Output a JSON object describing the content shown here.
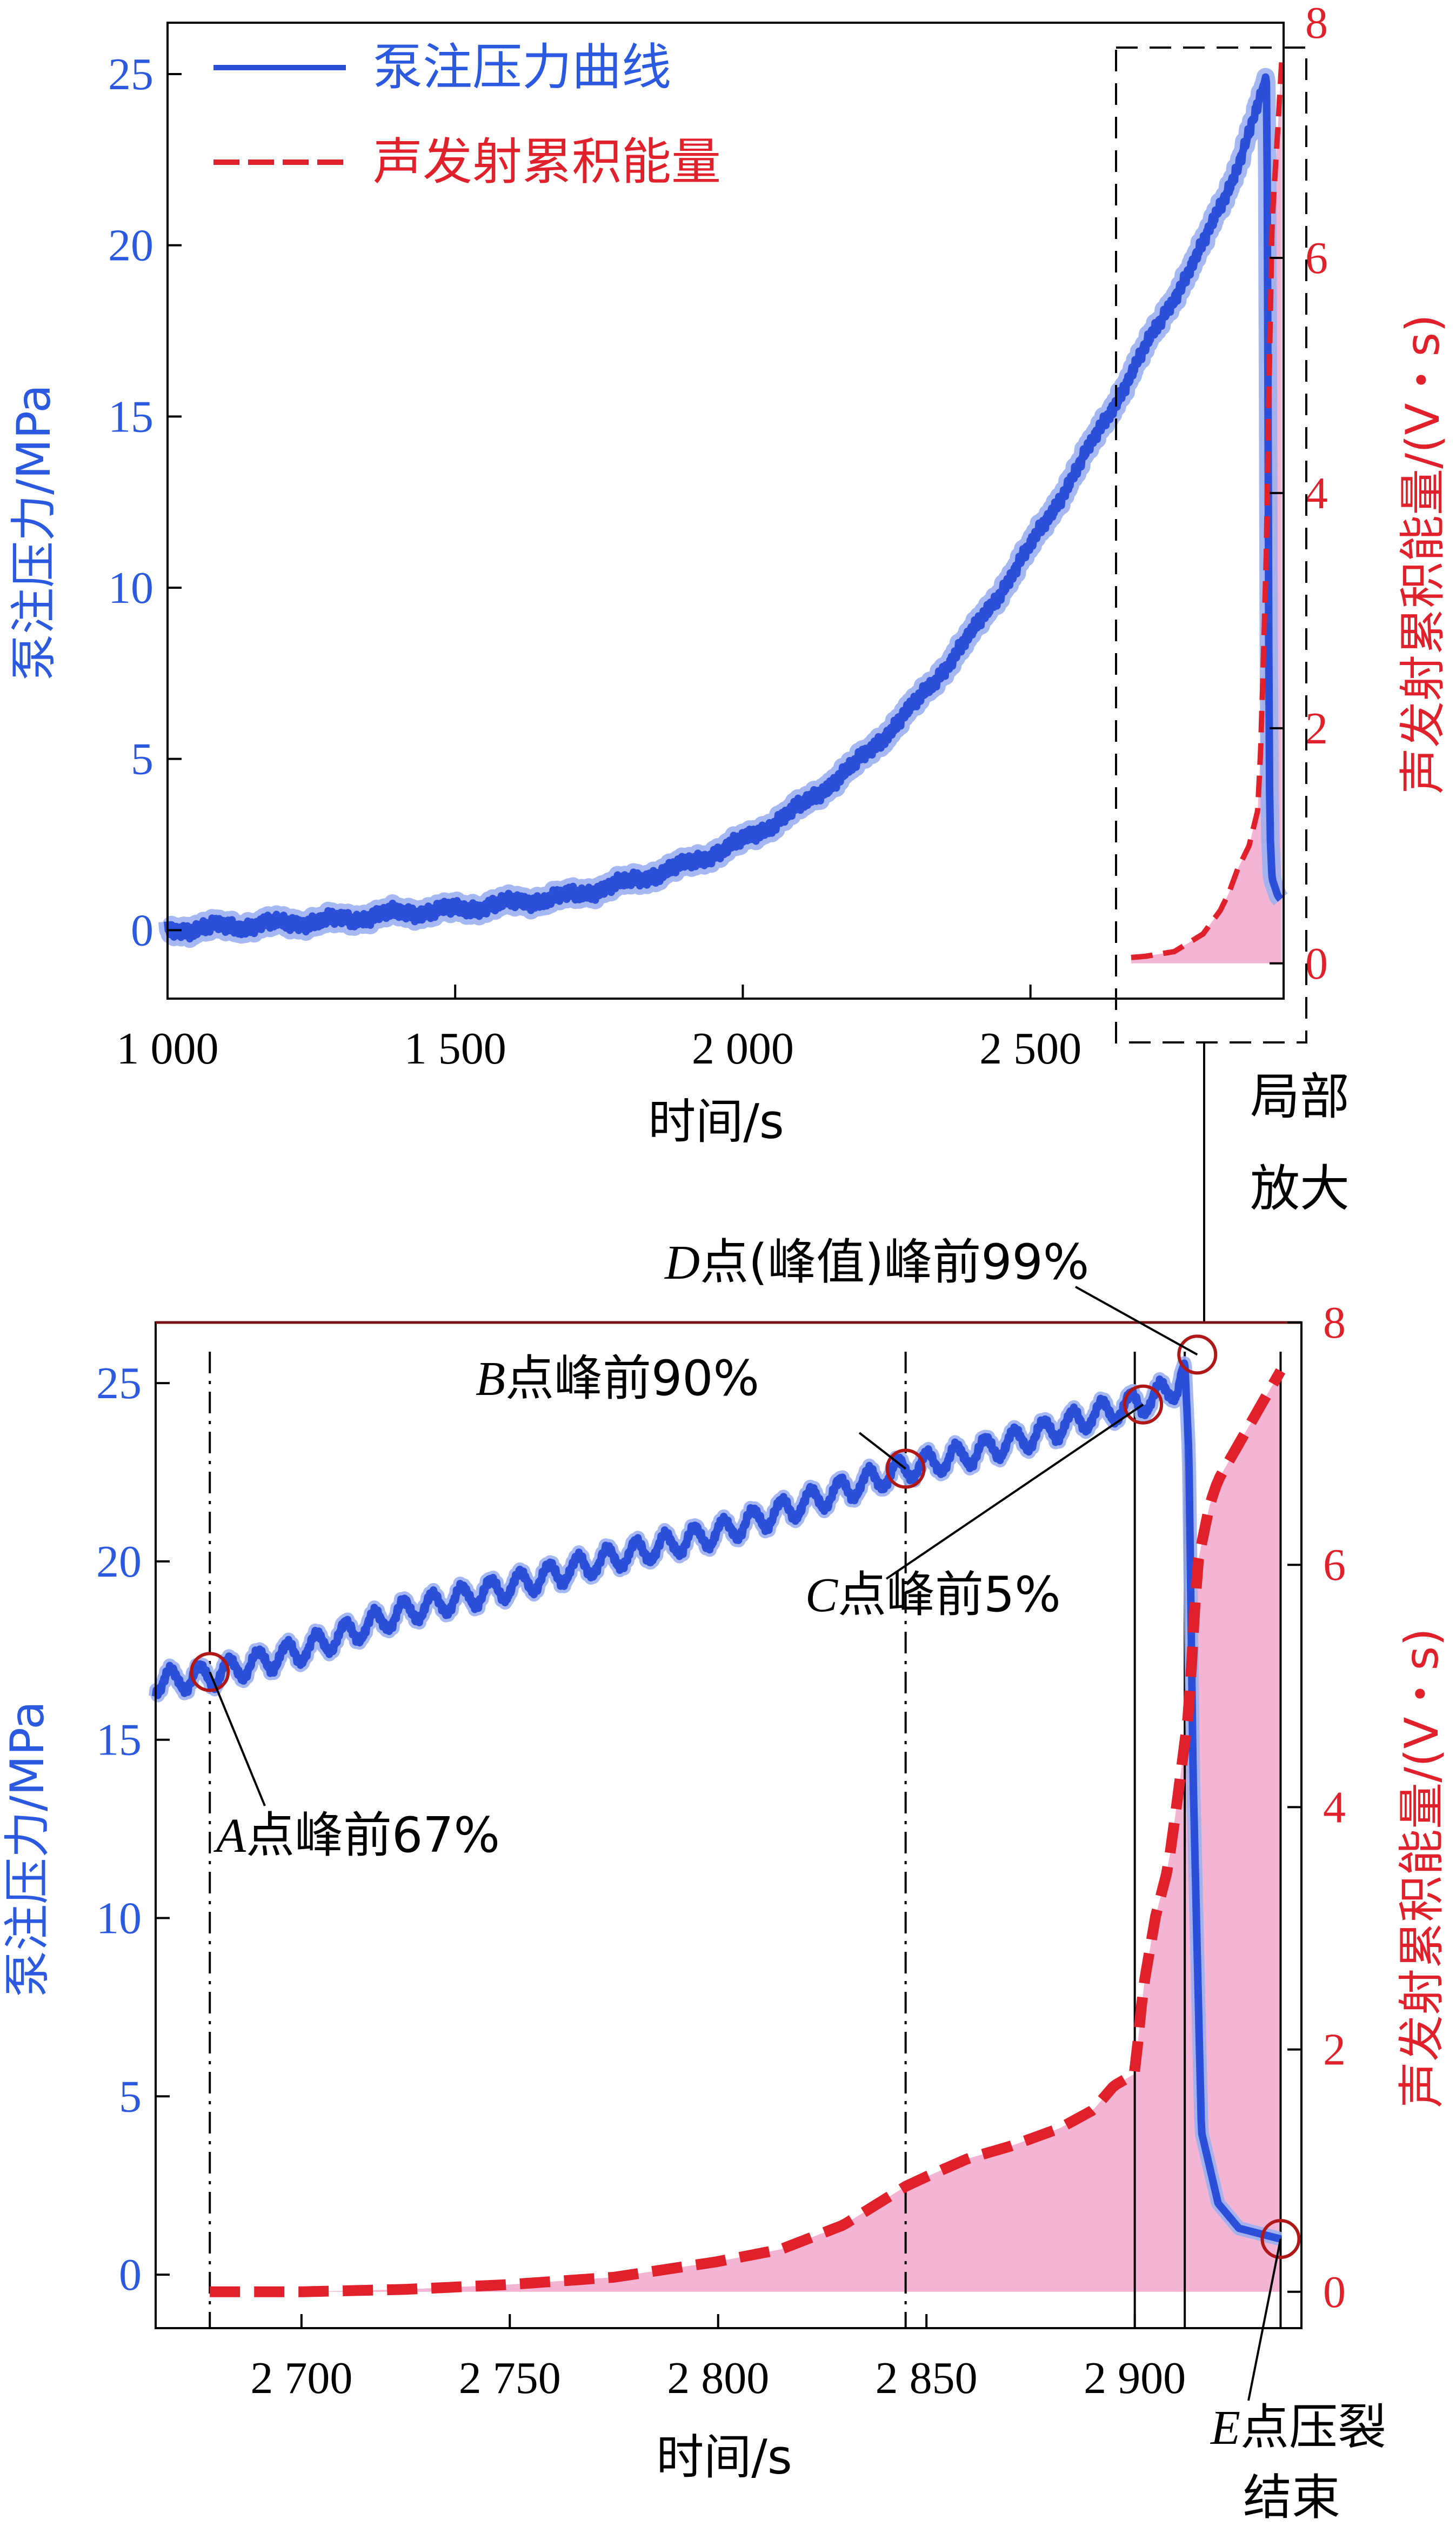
{
  "chart_data": [
    {
      "type": "line",
      "panel": "overview",
      "xlabel": "时间/s",
      "ylabel_left": "泵注压力/MPa",
      "ylabel_right": "声发射累积能量/(V・s)",
      "xlim": [
        1000,
        2940
      ],
      "ylim_left": [
        -2,
        26.5
      ],
      "ylim_right": [
        -0.3,
        8
      ],
      "x_ticks": [
        1000,
        1500,
        2000,
        2500
      ],
      "x_tick_labels": [
        "1 000",
        "1 500",
        "2 000",
        "2 500"
      ],
      "y_left_ticks": [
        0,
        5,
        10,
        15,
        20,
        25
      ],
      "y_left_tick_labels": [
        "0",
        "5",
        "10",
        "15",
        "20",
        "25"
      ],
      "y_right_ticks": [
        0,
        2,
        4,
        6,
        8
      ],
      "y_right_tick_labels": [
        "0",
        "2",
        "4",
        "6",
        "8"
      ],
      "legend": {
        "placement": "top-left",
        "entries": [
          "泵注压力曲线",
          "声发射累积能量"
        ]
      },
      "series": [
        {
          "name": "泵注压力曲线",
          "axis": "left",
          "color": "#2b4fd8",
          "x": [
            1000,
            1100,
            1200,
            1300,
            1400,
            1500,
            1600,
            1700,
            1800,
            1900,
            2000,
            2100,
            2200,
            2300,
            2400,
            2500,
            2600,
            2700,
            2800,
            2850,
            2880,
            2900,
            2910,
            2912,
            2914,
            2916,
            2920,
            2930,
            2935
          ],
          "y": [
            0,
            0.1,
            0.2,
            0.3,
            0.5,
            0.6,
            0.8,
            1.0,
            1.4,
            1.9,
            2.6,
            3.6,
            4.9,
            6.6,
            8.7,
            11.2,
            14.0,
            17.0,
            20.0,
            21.9,
            23.3,
            24.3,
            25.0,
            21.0,
            9.0,
            3.0,
            1.5,
            1.0,
            0.9
          ]
        },
        {
          "name": "声发射累积能量",
          "axis": "right",
          "color": "#e0202a",
          "fill": "#f4b4d4",
          "x": [
            2675,
            2700,
            2750,
            2800,
            2830,
            2845,
            2860,
            2880,
            2895,
            2900,
            2905,
            2910,
            2915,
            2920,
            2930,
            2937
          ],
          "y": [
            0.05,
            0.06,
            0.1,
            0.25,
            0.45,
            0.6,
            0.8,
            1.0,
            1.3,
            1.8,
            2.6,
            3.5,
            5.0,
            6.3,
            7.1,
            7.7
          ]
        }
      ]
    },
    {
      "type": "line",
      "panel": "zoom",
      "xlabel": "时间/s",
      "ylabel_left": "泵注压力/MPa",
      "ylabel_right": "声发射累积能量/(V・s)",
      "xlim": [
        2665,
        2940
      ],
      "ylim_left": [
        -1.5,
        26.7
      ],
      "ylim_right": [
        -0.3,
        8
      ],
      "x_ticks": [
        2700,
        2750,
        2800,
        2850,
        2900
      ],
      "x_tick_labels": [
        "2 700",
        "2 750",
        "2 800",
        "2 850",
        "2 900"
      ],
      "y_left_ticks": [
        0,
        5,
        10,
        15,
        20,
        25
      ],
      "y_left_tick_labels": [
        "0",
        "5",
        "10",
        "15",
        "20",
        "25"
      ],
      "y_right_ticks": [
        0,
        2,
        4,
        6,
        8
      ],
      "y_right_tick_labels": [
        "0",
        "2",
        "4",
        "6",
        "8"
      ],
      "series": [
        {
          "name": "泵注压力曲线",
          "axis": "left",
          "color": "#2b4fd8",
          "x": [
            2665,
            2678,
            2700,
            2725,
            2750,
            2775,
            2800,
            2825,
            2845,
            2860,
            2875,
            2890,
            2903,
            2910,
            2912,
            2913,
            2914,
            2916,
            2920,
            2925,
            2935
          ],
          "y": [
            16.6,
            16.8,
            17.5,
            18.6,
            19.3,
            20.1,
            20.8,
            21.8,
            22.6,
            23.0,
            23.5,
            24.1,
            24.5,
            24.9,
            25.6,
            23.0,
            14.0,
            4.0,
            2.0,
            1.3,
            1.0
          ]
        },
        {
          "name": "声发射累积能量",
          "axis": "right",
          "color": "#e0202a",
          "fill": "#f4b4d4",
          "x": [
            2678,
            2700,
            2725,
            2750,
            2775,
            2800,
            2815,
            2830,
            2845,
            2850,
            2860,
            2870,
            2882,
            2890,
            2895,
            2900,
            2902,
            2905,
            2908,
            2910,
            2913,
            2915,
            2918,
            2920,
            2925,
            2930,
            2935
          ],
          "y": [
            0.0,
            0.0,
            0.02,
            0.06,
            0.12,
            0.25,
            0.35,
            0.55,
            0.87,
            0.95,
            1.1,
            1.2,
            1.35,
            1.5,
            1.7,
            1.8,
            2.5,
            3.1,
            3.5,
            4.0,
            4.8,
            6.0,
            6.5,
            6.7,
            7.0,
            7.3,
            7.6
          ]
        }
      ],
      "annotations": [
        {
          "letter": "A",
          "text": "点峰前67%",
          "x": 2678,
          "y": 16.9
        },
        {
          "letter": "B",
          "text": "点峰前90%",
          "x": 2845,
          "y": 22.6
        },
        {
          "letter": "C",
          "text": "点峰前5%",
          "x": 2902,
          "y": 24.4
        },
        {
          "letter": "D",
          "text": "点(峰值)峰前99%",
          "x": 2915,
          "y": 25.8
        },
        {
          "letter": "E",
          "text": "点压裂",
          "text2": "结束",
          "x": 2935,
          "y": 1.0
        }
      ],
      "vertical_markers": [
        {
          "x": 2678,
          "style": "dash-dot"
        },
        {
          "x": 2845,
          "style": "dash-dot"
        },
        {
          "x": 2900,
          "style": "solid"
        },
        {
          "x": 2912,
          "style": "solid"
        },
        {
          "x": 2935,
          "style": "solid"
        }
      ]
    }
  ],
  "zoom_label_line1": "局部",
  "zoom_label_line2": "放大"
}
